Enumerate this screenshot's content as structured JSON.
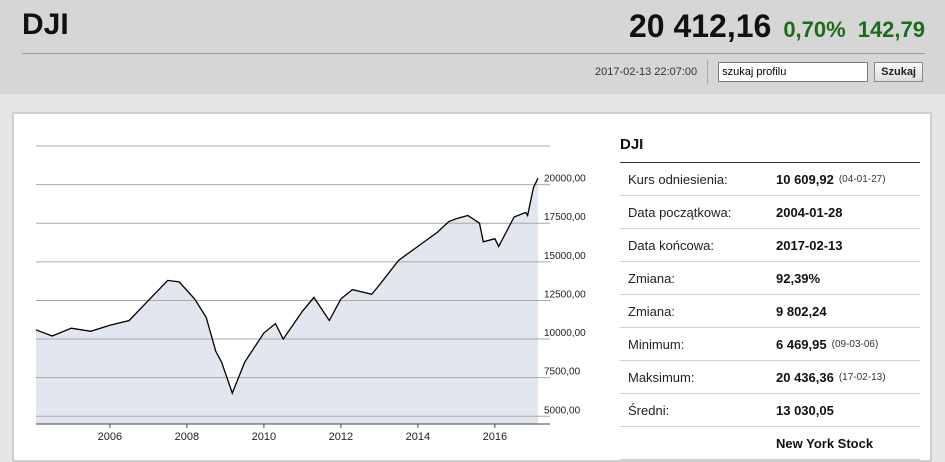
{
  "header": {
    "symbol": "DJI",
    "price": "20 412,16",
    "change_pct": "0,70%",
    "change_abs": "142,79",
    "timestamp": "2017-02-13 22:07:00",
    "search_value": "szukaj profilu",
    "search_button": "Szukaj"
  },
  "colors": {
    "positive": "#1e6b1e",
    "chart_fill": "#e2e6ef",
    "chart_line": "#000000"
  },
  "stats": {
    "title": "DJI",
    "rows": [
      {
        "label": "Kurs odniesienia:",
        "value": "10 609,92",
        "sub": "(04-01-27)"
      },
      {
        "label": "Data początkowa:",
        "value": "2004-01-28",
        "sub": ""
      },
      {
        "label": "Data końcowa:",
        "value": "2017-02-13",
        "sub": ""
      },
      {
        "label": "Zmiana:",
        "value": "92,39%",
        "sub": ""
      },
      {
        "label": "Zmiana:",
        "value": "9 802,24",
        "sub": ""
      },
      {
        "label": "Minimum:",
        "value": "6 469,95",
        "sub": "(09-03-06)"
      },
      {
        "label": "Maksimum:",
        "value": "20 436,36",
        "sub": "(17-02-13)"
      },
      {
        "label": "Średni:",
        "value": "13 030,05",
        "sub": ""
      },
      {
        "label": "",
        "value": "New York Stock",
        "sub": ""
      }
    ]
  },
  "chart_data": {
    "type": "area",
    "title": "",
    "xlabel": "",
    "ylabel": "",
    "x_ticks": [
      "2006",
      "2008",
      "2010",
      "2012",
      "2014",
      "2016"
    ],
    "y_ticks": [
      "5000,00",
      "7500,00",
      "10000,00",
      "12500,00",
      "15000,00",
      "17500,00",
      "20000,00"
    ],
    "ylim": [
      4500,
      22500
    ],
    "xlim": [
      2004.08,
      2017.12
    ],
    "grid": true,
    "x": [
      2004.08,
      2004.5,
      2005.0,
      2005.5,
      2006.0,
      2006.5,
      2007.0,
      2007.5,
      2007.8,
      2008.2,
      2008.5,
      2008.75,
      2008.9,
      2009.18,
      2009.5,
      2010.0,
      2010.3,
      2010.5,
      2011.0,
      2011.3,
      2011.7,
      2012.0,
      2012.3,
      2012.8,
      2013.0,
      2013.5,
      2014.0,
      2014.5,
      2014.8,
      2015.0,
      2015.3,
      2015.6,
      2015.7,
      2016.0,
      2016.1,
      2016.5,
      2016.8,
      2016.85,
      2017.0,
      2017.12
    ],
    "y": [
      10600,
      10200,
      10700,
      10500,
      10900,
      11200,
      12500,
      13800,
      13700,
      12600,
      11400,
      9200,
      8500,
      6500,
      8500,
      10400,
      11000,
      10000,
      11800,
      12700,
      11200,
      12600,
      13200,
      12900,
      13500,
      15100,
      16000,
      16900,
      17600,
      17800,
      18000,
      17500,
      16300,
      16500,
      16000,
      17900,
      18200,
      18000,
      19800,
      20412
    ]
  }
}
